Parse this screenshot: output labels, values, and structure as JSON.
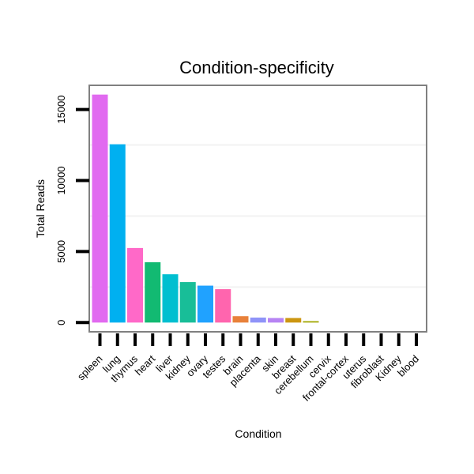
{
  "chart_data": {
    "type": "bar",
    "title": "Condition-specificity",
    "xlabel": "Condition",
    "ylabel": "Total Reads",
    "ylim": [
      -650,
      16700
    ],
    "yticks": [
      0,
      5000,
      10000,
      15000
    ],
    "ytick_labels": [
      "0",
      "5000",
      "10000",
      "15000"
    ],
    "categories": [
      "spleen",
      "lung",
      "thymus",
      "heart",
      "liver",
      "kidney",
      "ovary",
      "testes",
      "brain",
      "placenta",
      "skin",
      "breast",
      "cerebellum",
      "cervix",
      "frontal-cortex",
      "uterus",
      "fibroblast",
      "Kidney",
      "blood"
    ],
    "values": [
      16050,
      12550,
      5250,
      4250,
      3400,
      2850,
      2600,
      2350,
      450,
      350,
      320,
      320,
      100,
      0,
      0,
      0,
      0,
      0,
      0
    ],
    "colors": [
      "#E16AF0",
      "#00B0F0",
      "#FF69C8",
      "#12BA72",
      "#00BFD0",
      "#18BE98",
      "#20A2FF",
      "#FF65AE",
      "#E8813A",
      "#8F93F8",
      "#B784F3",
      "#CC9610",
      "#A1A600",
      "#B0A000",
      "#00B85A",
      "#A7A1F0",
      "#3DAF3F",
      "#5D9F20",
      "#F8766D"
    ],
    "grid": true,
    "legend": "none"
  }
}
